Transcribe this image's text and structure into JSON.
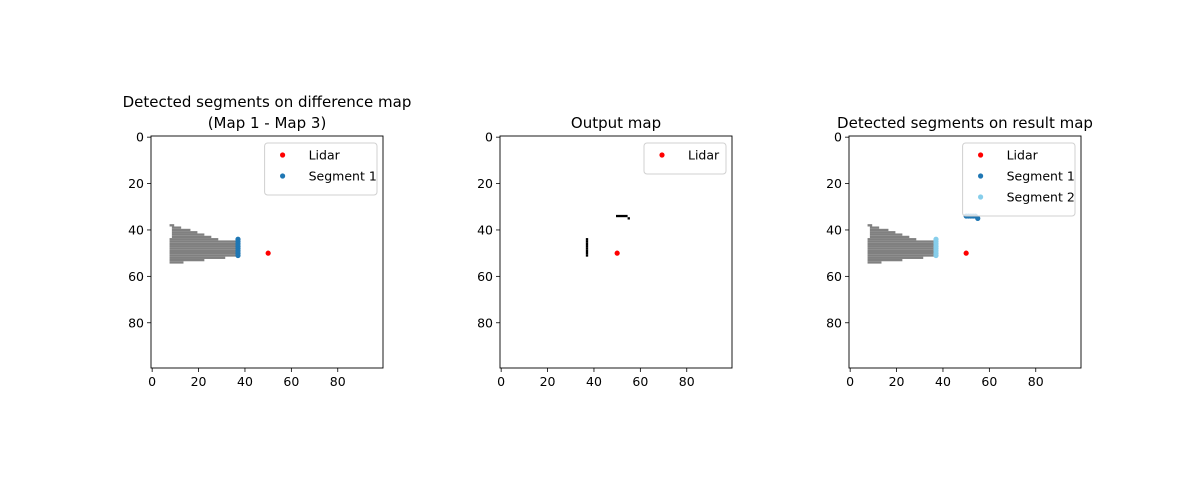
{
  "figure": {
    "background": "#ffffff"
  },
  "chart_data": [
    {
      "type": "scatter",
      "title_lines": [
        "Detected segments on difference map",
        "(Map 1 - Map 3)"
      ],
      "xlabel": "",
      "ylabel": "",
      "xlim": [
        -0.5,
        99.5
      ],
      "ylim": [
        99.5,
        -0.5
      ],
      "xticks": [
        0,
        20,
        40,
        60,
        80
      ],
      "yticks": [
        0,
        20,
        40,
        60,
        80
      ],
      "grid": false,
      "legend": {
        "position": "top-right",
        "entries": [
          {
            "label": "Lidar",
            "color": "#ff0000"
          },
          {
            "label": "Segment 1",
            "color": "#1f77b4"
          }
        ]
      },
      "map_color": "#808080",
      "map_rows": [
        {
          "y": 38,
          "x0": 8,
          "x1": 9
        },
        {
          "y": 39,
          "x0": 9,
          "x1": 12
        },
        {
          "y": 40,
          "x0": 9,
          "x1": 16
        },
        {
          "y": 41,
          "x0": 9,
          "x1": 19
        },
        {
          "y": 42,
          "x0": 9,
          "x1": 22
        },
        {
          "y": 43,
          "x0": 9,
          "x1": 25
        },
        {
          "y": 44,
          "x0": 8,
          "x1": 28
        },
        {
          "y": 45,
          "x0": 8,
          "x1": 37
        },
        {
          "y": 46,
          "x0": 8,
          "x1": 37
        },
        {
          "y": 47,
          "x0": 8,
          "x1": 37
        },
        {
          "y": 48,
          "x0": 8,
          "x1": 37
        },
        {
          "y": 49,
          "x0": 8,
          "x1": 37
        },
        {
          "y": 50,
          "x0": 8,
          "x1": 37
        },
        {
          "y": 51,
          "x0": 8,
          "x1": 37
        },
        {
          "y": 52,
          "x0": 8,
          "x1": 31
        },
        {
          "y": 53,
          "x0": 8,
          "x1": 22
        },
        {
          "y": 54,
          "x0": 8,
          "x1": 13
        }
      ],
      "series": [
        {
          "name": "Lidar",
          "color": "#ff0000",
          "points": [
            [
              50,
              50
            ]
          ]
        },
        {
          "name": "Segment 1",
          "color": "#1f77b4",
          "points": [
            [
              37,
              44
            ],
            [
              37,
              45
            ],
            [
              37,
              46
            ],
            [
              37,
              47
            ],
            [
              37,
              48
            ],
            [
              37,
              49
            ],
            [
              37,
              50
            ],
            [
              37,
              51
            ]
          ]
        }
      ]
    },
    {
      "type": "scatter",
      "title_lines": [
        "Output map"
      ],
      "xlabel": "",
      "ylabel": "",
      "xlim": [
        -0.5,
        99.5
      ],
      "ylim": [
        99.5,
        -0.5
      ],
      "xticks": [
        0,
        20,
        40,
        60,
        80
      ],
      "yticks": [
        0,
        20,
        40,
        60,
        80
      ],
      "grid": false,
      "legend": {
        "position": "top-right",
        "entries": [
          {
            "label": "Lidar",
            "color": "#ff0000"
          }
        ]
      },
      "map_color": "#000000",
      "map_rows": [
        {
          "y": 34,
          "x0": 50,
          "x1": 54
        },
        {
          "y": 35,
          "x0": 55,
          "x1": 55
        },
        {
          "y": 44,
          "x0": 37,
          "x1": 37
        },
        {
          "y": 45,
          "x0": 37,
          "x1": 37
        },
        {
          "y": 46,
          "x0": 37,
          "x1": 37
        },
        {
          "y": 47,
          "x0": 37,
          "x1": 37
        },
        {
          "y": 48,
          "x0": 37,
          "x1": 37
        },
        {
          "y": 49,
          "x0": 37,
          "x1": 37
        },
        {
          "y": 50,
          "x0": 37,
          "x1": 37
        },
        {
          "y": 51,
          "x0": 37,
          "x1": 37
        }
      ],
      "series": [
        {
          "name": "Lidar",
          "color": "#ff0000",
          "points": [
            [
              50,
              50
            ]
          ]
        }
      ]
    },
    {
      "type": "scatter",
      "title_lines": [
        "Detected segments on result map"
      ],
      "xlabel": "",
      "ylabel": "",
      "xlim": [
        -0.5,
        99.5
      ],
      "ylim": [
        99.5,
        -0.5
      ],
      "xticks": [
        0,
        20,
        40,
        60,
        80
      ],
      "yticks": [
        0,
        20,
        40,
        60,
        80
      ],
      "grid": false,
      "legend": {
        "position": "top-right",
        "entries": [
          {
            "label": "Lidar",
            "color": "#ff0000"
          },
          {
            "label": "Segment 1",
            "color": "#1f77b4"
          },
          {
            "label": "Segment 2",
            "color": "#87ceeb"
          }
        ]
      },
      "map_color": "#808080",
      "map_rows": [
        {
          "y": 38,
          "x0": 8,
          "x1": 9
        },
        {
          "y": 39,
          "x0": 9,
          "x1": 12
        },
        {
          "y": 40,
          "x0": 9,
          "x1": 16
        },
        {
          "y": 41,
          "x0": 9,
          "x1": 19
        },
        {
          "y": 42,
          "x0": 9,
          "x1": 22
        },
        {
          "y": 43,
          "x0": 9,
          "x1": 25
        },
        {
          "y": 44,
          "x0": 8,
          "x1": 28
        },
        {
          "y": 45,
          "x0": 8,
          "x1": 37
        },
        {
          "y": 46,
          "x0": 8,
          "x1": 37
        },
        {
          "y": 47,
          "x0": 8,
          "x1": 37
        },
        {
          "y": 48,
          "x0": 8,
          "x1": 37
        },
        {
          "y": 49,
          "x0": 8,
          "x1": 37
        },
        {
          "y": 50,
          "x0": 8,
          "x1": 37
        },
        {
          "y": 51,
          "x0": 8,
          "x1": 37
        },
        {
          "y": 52,
          "x0": 8,
          "x1": 31
        },
        {
          "y": 53,
          "x0": 8,
          "x1": 22
        },
        {
          "y": 54,
          "x0": 8,
          "x1": 13
        }
      ],
      "series": [
        {
          "name": "Lidar",
          "color": "#ff0000",
          "points": [
            [
              50,
              50
            ]
          ]
        },
        {
          "name": "Segment 1",
          "color": "#1f77b4",
          "points": [
            [
              50,
              34
            ],
            [
              51,
              34
            ],
            [
              52,
              34
            ],
            [
              53,
              34
            ],
            [
              54,
              34
            ],
            [
              55,
              35
            ]
          ]
        },
        {
          "name": "Segment 2",
          "color": "#87ceeb",
          "points": [
            [
              37,
              44
            ],
            [
              37,
              45
            ],
            [
              37,
              46
            ],
            [
              37,
              47
            ],
            [
              37,
              48
            ],
            [
              37,
              49
            ],
            [
              37,
              50
            ],
            [
              37,
              51
            ]
          ]
        }
      ]
    }
  ]
}
